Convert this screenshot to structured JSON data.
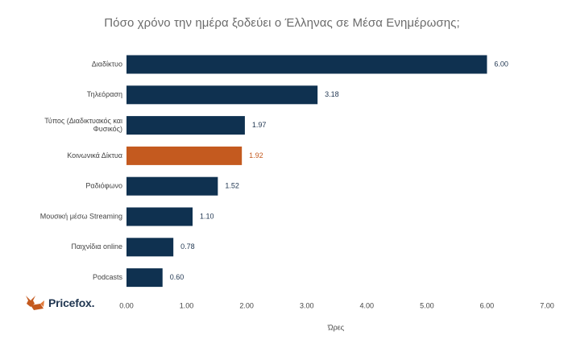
{
  "title": "Πόσο χρόνο την ημέρα ξοδεύει ο Έλληνας σε Μέσα Ενημέρωσης;",
  "logo_text": "Pricefox.",
  "colors": {
    "bar": "#0f3150",
    "highlight": "#c45a1f",
    "label_default": "#1f3550",
    "label_highlight": "#c45a1f"
  },
  "chart_data": {
    "type": "bar",
    "orientation": "horizontal",
    "title": "Πόσο χρόνο την ημέρα ξοδεύει ο Έλληνας σε Μέσα Ενημέρωσης;",
    "xlabel": "Ώρες",
    "ylabel": "",
    "xlim": [
      0,
      7
    ],
    "xticks": [
      "0.00",
      "1.00",
      "2.00",
      "3.00",
      "4.00",
      "5.00",
      "6.00",
      "7.00"
    ],
    "grid": false,
    "categories": [
      "Διαδίκτυο",
      "Τηλεόραση",
      "Τύπος (Διαδικτυακός και Φυσικός)",
      "Κοινωνικά Δίκτυα",
      "Ραδιόφωνο",
      "Μουσική μέσω Streaming",
      "Παιχνίδια online",
      "Podcasts"
    ],
    "category_lines": [
      [
        "Διαδίκτυο"
      ],
      [
        "Τηλεόραση"
      ],
      [
        "Τύπος (Διαδικτυακός και",
        "Φυσικός)"
      ],
      [
        "Κοινωνικά Δίκτυα"
      ],
      [
        "Ραδιόφωνο"
      ],
      [
        "Μουσική μέσω Streaming"
      ],
      [
        "Παιχνίδια online"
      ],
      [
        "Podcasts"
      ]
    ],
    "values": [
      6.0,
      3.18,
      1.97,
      1.92,
      1.52,
      1.1,
      0.78,
      0.6
    ],
    "value_labels": [
      "6.00",
      "3.18",
      "1.97",
      "1.92",
      "1.52",
      "1.10",
      "0.78",
      "0.60"
    ],
    "highlight_index": 3
  }
}
